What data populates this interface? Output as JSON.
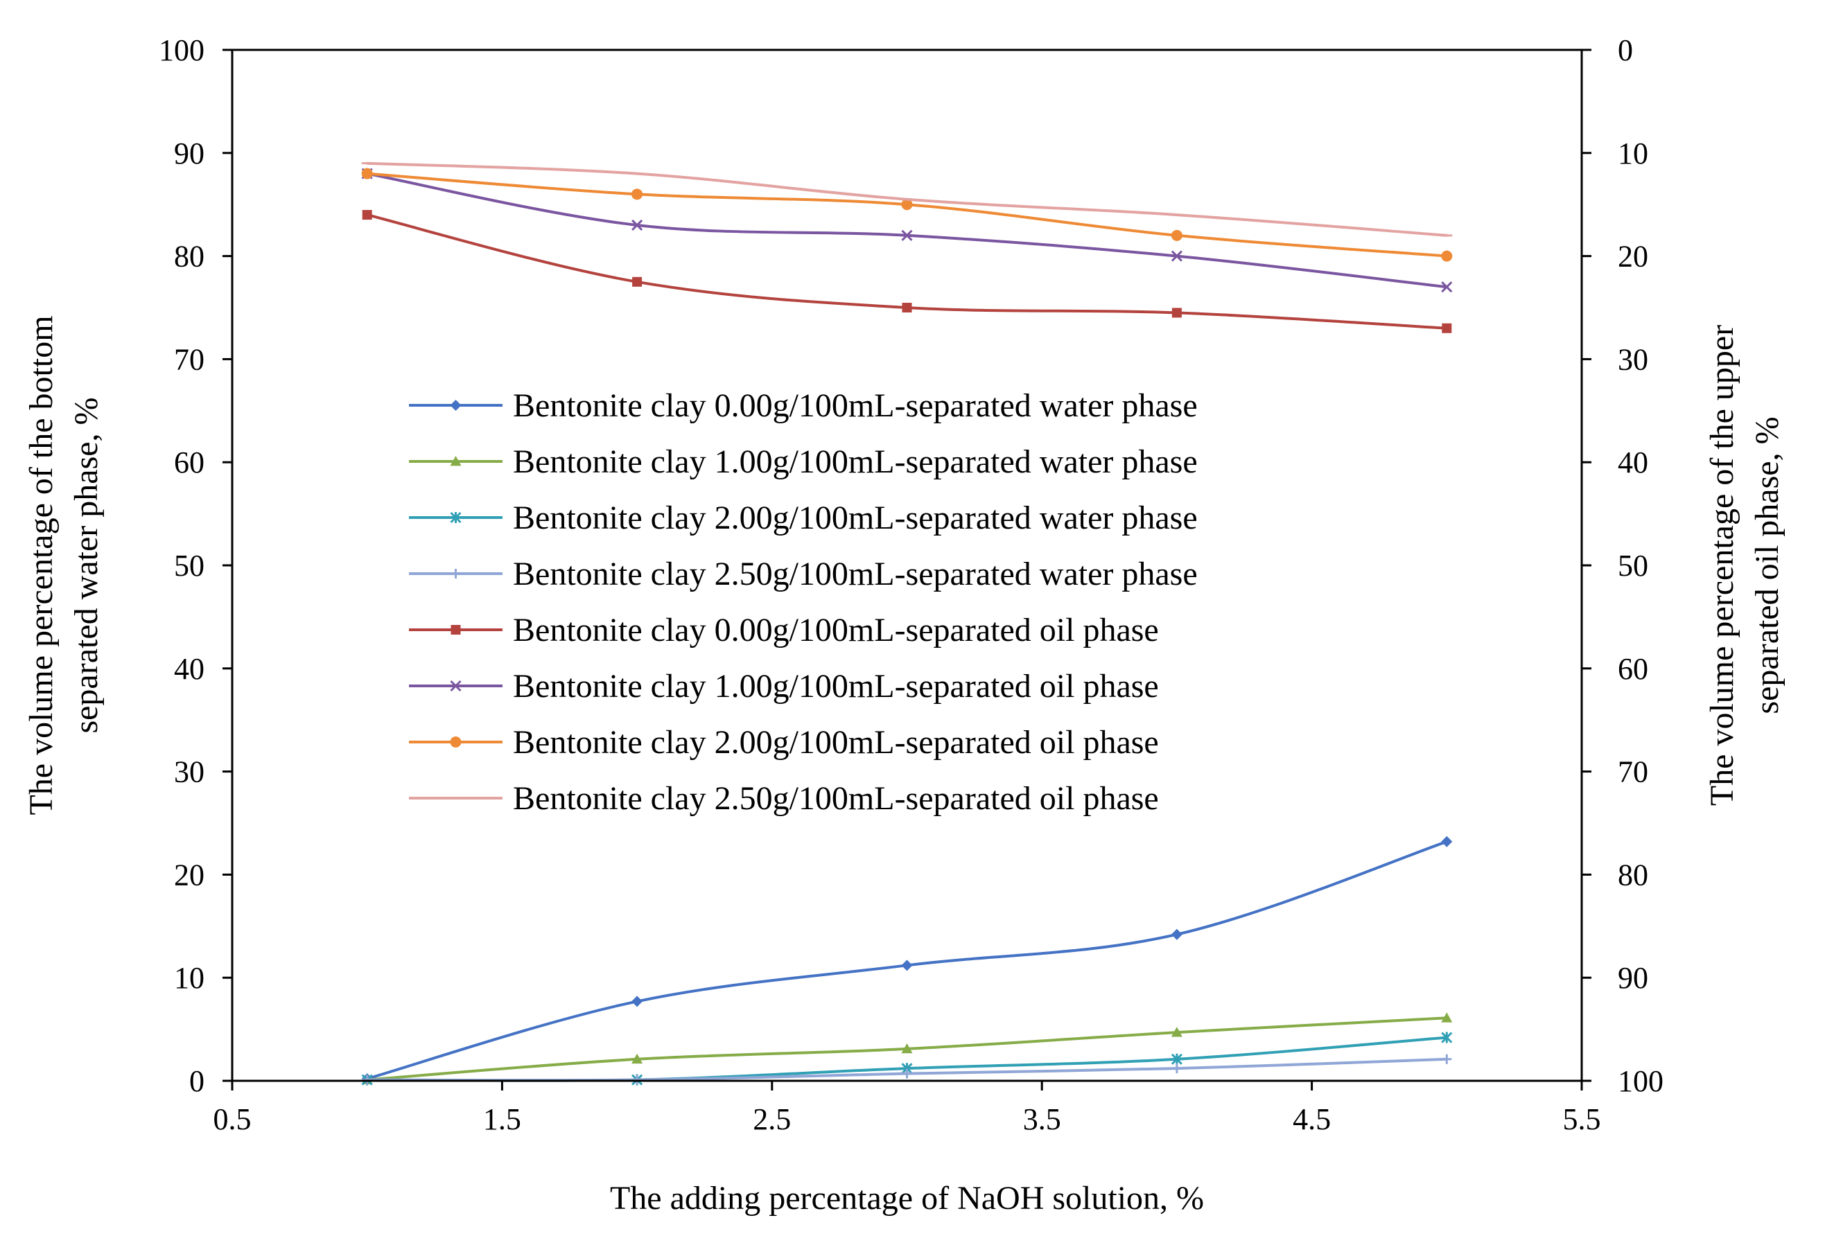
{
  "chart_data": {
    "type": "line",
    "xlabel": "The adding percentage of NaOH solution, %",
    "ylabel_left_line1": "The volume percentage of the bottom",
    "ylabel_left_line2": "separated water phase, %",
    "ylabel_right_line1": "The volume percentage of the upper",
    "ylabel_right_line2": "separated oil phase, %",
    "xlim": [
      0.5,
      5.5
    ],
    "ylim_left": [
      0,
      100
    ],
    "ylim_right": [
      100,
      0
    ],
    "x_ticks": [
      "0.5",
      "1.5",
      "2.5",
      "3.5",
      "4.5",
      "5.5"
    ],
    "x_tick_values": [
      0.5,
      1.5,
      2.5,
      3.5,
      4.5,
      5.5
    ],
    "y_left_ticks": [
      "0",
      "10",
      "20",
      "30",
      "40",
      "50",
      "60",
      "70",
      "80",
      "90",
      "100"
    ],
    "y_left_tick_values": [
      0,
      10,
      20,
      30,
      40,
      50,
      60,
      70,
      80,
      90,
      100
    ],
    "y_right_ticks": [
      "100",
      "90",
      "80",
      "70",
      "60",
      "50",
      "40",
      "30",
      "20",
      "10",
      "0"
    ],
    "legend_position": "center",
    "series": [
      {
        "name": "Bentonite clay 0.00g/100mL-separated water phase",
        "axis": "left",
        "color": "#4472C4",
        "marker": "diamond",
        "x": [
          1,
          2,
          3,
          4,
          5
        ],
        "values": [
          0.2,
          7.7,
          11.2,
          14.2,
          23.2
        ]
      },
      {
        "name": "Bentonite clay 1.00g/100mL-separated water phase",
        "axis": "left",
        "color": "#86AC48",
        "marker": "triangle",
        "x": [
          1,
          2,
          3,
          4,
          5
        ],
        "values": [
          0.1,
          2.1,
          3.1,
          4.7,
          6.1
        ]
      },
      {
        "name": "Bentonite clay 2.00g/100mL-separated water phase",
        "axis": "left",
        "color": "#31A0B5",
        "marker": "star",
        "x": [
          1,
          2,
          3,
          4,
          5
        ],
        "values": [
          0.1,
          0.1,
          1.2,
          2.1,
          4.2
        ]
      },
      {
        "name": "Bentonite clay 2.50g/100mL-separated water phase",
        "axis": "left",
        "color": "#8FA6D6",
        "marker": "plus",
        "x": [
          1,
          2,
          3,
          4,
          5
        ],
        "values": [
          0.1,
          0.1,
          0.7,
          1.2,
          2.1
        ]
      },
      {
        "name": "Bentonite clay 0.00g/100mL-separated oil phase",
        "axis": "right",
        "color": "#B4433E",
        "marker": "square",
        "x": [
          1,
          2,
          3,
          4,
          5
        ],
        "values": [
          16,
          22.5,
          25,
          25.5,
          27
        ]
      },
      {
        "name": "Bentonite clay 1.00g/100mL-separated oil phase",
        "axis": "right",
        "color": "#7A55A0",
        "marker": "x",
        "x": [
          1,
          2,
          3,
          4,
          5
        ],
        "values": [
          12,
          17,
          18,
          20,
          23
        ]
      },
      {
        "name": "Bentonite clay 2.00g/100mL-separated oil phase",
        "axis": "right",
        "color": "#EE8A35",
        "marker": "circle",
        "x": [
          1,
          2,
          3,
          4,
          5
        ],
        "values": [
          12,
          14,
          15,
          18,
          20
        ]
      },
      {
        "name": "Bentonite clay 2.50g/100mL-separated oil phase",
        "axis": "right",
        "color": "#E2A3A1",
        "marker": "dash",
        "x": [
          1,
          2,
          3,
          4,
          5
        ],
        "values": [
          11,
          12,
          14.5,
          16,
          18
        ]
      }
    ]
  }
}
